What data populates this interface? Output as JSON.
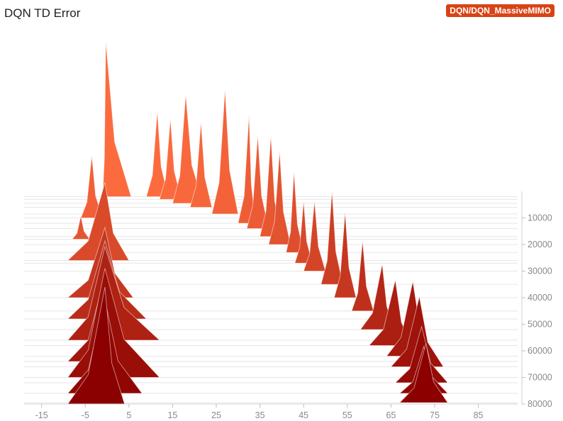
{
  "header": {
    "title": "DQN TD Error",
    "run_tag": "DQN/DQN_MassiveMIMO"
  },
  "colors": {
    "early": "#ff6e40",
    "late": "#8b0000",
    "badge": "#d84315"
  },
  "chart_data": {
    "type": "histogram-offset",
    "title": "DQN TD Error",
    "x_ticks": [
      -15,
      -5,
      5,
      15,
      25,
      35,
      45,
      55,
      65,
      75,
      85
    ],
    "x_range": [
      -19,
      94
    ],
    "step_ticks": [
      10000,
      20000,
      30000,
      40000,
      50000,
      60000,
      70000,
      80000
    ],
    "step_range": [
      0,
      80000
    ],
    "ridge_height": 220,
    "legend": "none",
    "grid": true,
    "slices": [
      {
        "step": 2000,
        "lo": -1,
        "hi": 5.5,
        "peak": -0.3,
        "peak_count": 1.0
      },
      {
        "step": 2000,
        "lo": 9,
        "hi": 14,
        "peak": 11.5,
        "peak_count": 0.55
      },
      {
        "step": 3000,
        "lo": 12,
        "hi": 17,
        "peak": 14.5,
        "peak_count": 0.52
      },
      {
        "step": 4500,
        "lo": 15,
        "hi": 22,
        "peak": 18,
        "peak_count": 0.7
      },
      {
        "step": 6000,
        "lo": 19,
        "hi": 24,
        "peak": 21.5,
        "peak_count": 0.55
      },
      {
        "step": 8500,
        "lo": 24,
        "hi": 30,
        "peak": 27,
        "peak_count": 0.8
      },
      {
        "step": 12000,
        "lo": 30,
        "hi": 34,
        "peak": 32.5,
        "peak_count": 0.7
      },
      {
        "step": 14000,
        "lo": 32,
        "hi": 37,
        "peak": 34.5,
        "peak_count": 0.6
      },
      {
        "step": 17000,
        "lo": 35,
        "hi": 40,
        "peak": 37.5,
        "peak_count": 0.65
      },
      {
        "step": 20000,
        "lo": 37,
        "hi": 42,
        "peak": 39.5,
        "peak_count": 0.6
      },
      {
        "step": 23000,
        "lo": 41,
        "hi": 45,
        "peak": 42.8,
        "peak_count": 0.52
      },
      {
        "step": 27000,
        "lo": 43,
        "hi": 47,
        "peak": 45,
        "peak_count": 0.4
      },
      {
        "step": 30000,
        "lo": 45,
        "hi": 50,
        "peak": 47.5,
        "peak_count": 0.45
      },
      {
        "step": 35000,
        "lo": 49,
        "hi": 54,
        "peak": 51.5,
        "peak_count": 0.6
      },
      {
        "step": 40000,
        "lo": 52,
        "hi": 57,
        "peak": 54.5,
        "peak_count": 0.55
      },
      {
        "step": 45000,
        "lo": 56,
        "hi": 61,
        "peak": 58.5,
        "peak_count": 0.45
      },
      {
        "step": 52000,
        "lo": 58,
        "hi": 66,
        "peak": 63,
        "peak_count": 0.42
      },
      {
        "step": 58000,
        "lo": 60,
        "hi": 70,
        "peak": 66,
        "peak_count": 0.42
      },
      {
        "step": 62000,
        "lo": 64,
        "hi": 75,
        "peak": 70,
        "peak_count": 0.48
      },
      {
        "step": 66000,
        "lo": 65,
        "hi": 77,
        "peak": 71.5,
        "peak_count": 0.45
      },
      {
        "step": 72000,
        "lo": 66,
        "hi": 78,
        "peak": 72,
        "peak_count": 0.36
      },
      {
        "step": 76000,
        "lo": 67,
        "hi": 78,
        "peak": 72.5,
        "peak_count": 0.3
      },
      {
        "step": 79500,
        "lo": 67,
        "hi": 78,
        "peak": 73,
        "peak_count": 0.38
      },
      {
        "step": 10000,
        "lo": -6,
        "hi": -1,
        "peak": -3.5,
        "peak_count": 0.4
      },
      {
        "step": 18000,
        "lo": -8,
        "hi": -4,
        "peak": -6,
        "peak_count": 0.15
      },
      {
        "step": 26000,
        "lo": -9,
        "hi": 5,
        "peak": -0.5,
        "peak_count": 0.5
      },
      {
        "step": 40000,
        "lo": -9,
        "hi": 6,
        "peak": -0.5,
        "peak_count": 0.45
      },
      {
        "step": 48000,
        "lo": -9,
        "hi": 9,
        "peak": -0.5,
        "peak_count": 0.5
      },
      {
        "step": 56000,
        "lo": -9,
        "hi": 12,
        "peak": -0.5,
        "peak_count": 0.6
      },
      {
        "step": 64000,
        "lo": -9,
        "hi": 7,
        "peak": -0.5,
        "peak_count": 0.55
      },
      {
        "step": 70000,
        "lo": -9,
        "hi": 12,
        "peak": -0.5,
        "peak_count": 0.7
      },
      {
        "step": 76000,
        "lo": -9,
        "hi": 8,
        "peak": -0.5,
        "peak_count": 0.6
      },
      {
        "step": 80000,
        "lo": -9,
        "hi": 4,
        "peak": -0.5,
        "peak_count": 0.75
      }
    ]
  }
}
